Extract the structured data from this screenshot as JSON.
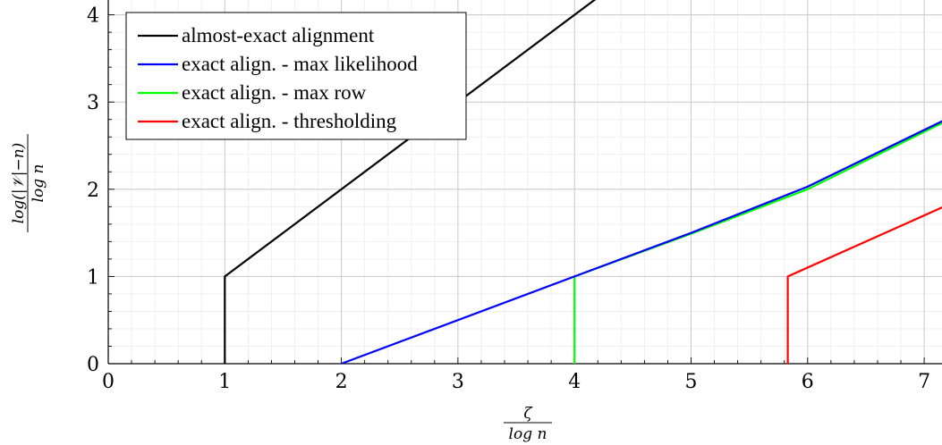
{
  "chart_data": {
    "type": "line",
    "xlabel": {
      "numerator": "ζ",
      "denominator": "log n"
    },
    "ylabel": {
      "numerator": "log(|𝒱|−n)",
      "denominator": "log n"
    },
    "xlim": [
      0,
      7.2
    ],
    "ylim": [
      0,
      4.2
    ],
    "xticks": [
      0,
      1,
      2,
      3,
      4,
      5,
      6,
      7
    ],
    "yticks": [
      0,
      1,
      2,
      3,
      4
    ],
    "grid": true,
    "legend_position": "top-left",
    "series": [
      {
        "name": "almost-exact alignment",
        "color": "#000000",
        "points": [
          [
            1,
            0
          ],
          [
            1,
            1
          ],
          [
            4.2,
            4.2
          ]
        ]
      },
      {
        "name": "exact align. - max likelihood",
        "color": "#0000ff",
        "points": [
          [
            2,
            0
          ],
          [
            4,
            1
          ],
          [
            5,
            1.5
          ],
          [
            6,
            2.03
          ],
          [
            7.2,
            2.81
          ]
        ]
      },
      {
        "name": "exact align. - max row",
        "color": "#00ff00",
        "points": [
          [
            4,
            0
          ],
          [
            4,
            1
          ],
          [
            5,
            1.49
          ],
          [
            6,
            2.0
          ],
          [
            7.2,
            2.79
          ]
        ]
      },
      {
        "name": "exact align. - thresholding",
        "color": "#ff0000",
        "points": [
          [
            5.83,
            0
          ],
          [
            5.83,
            1
          ],
          [
            7.2,
            1.82
          ]
        ]
      }
    ]
  }
}
